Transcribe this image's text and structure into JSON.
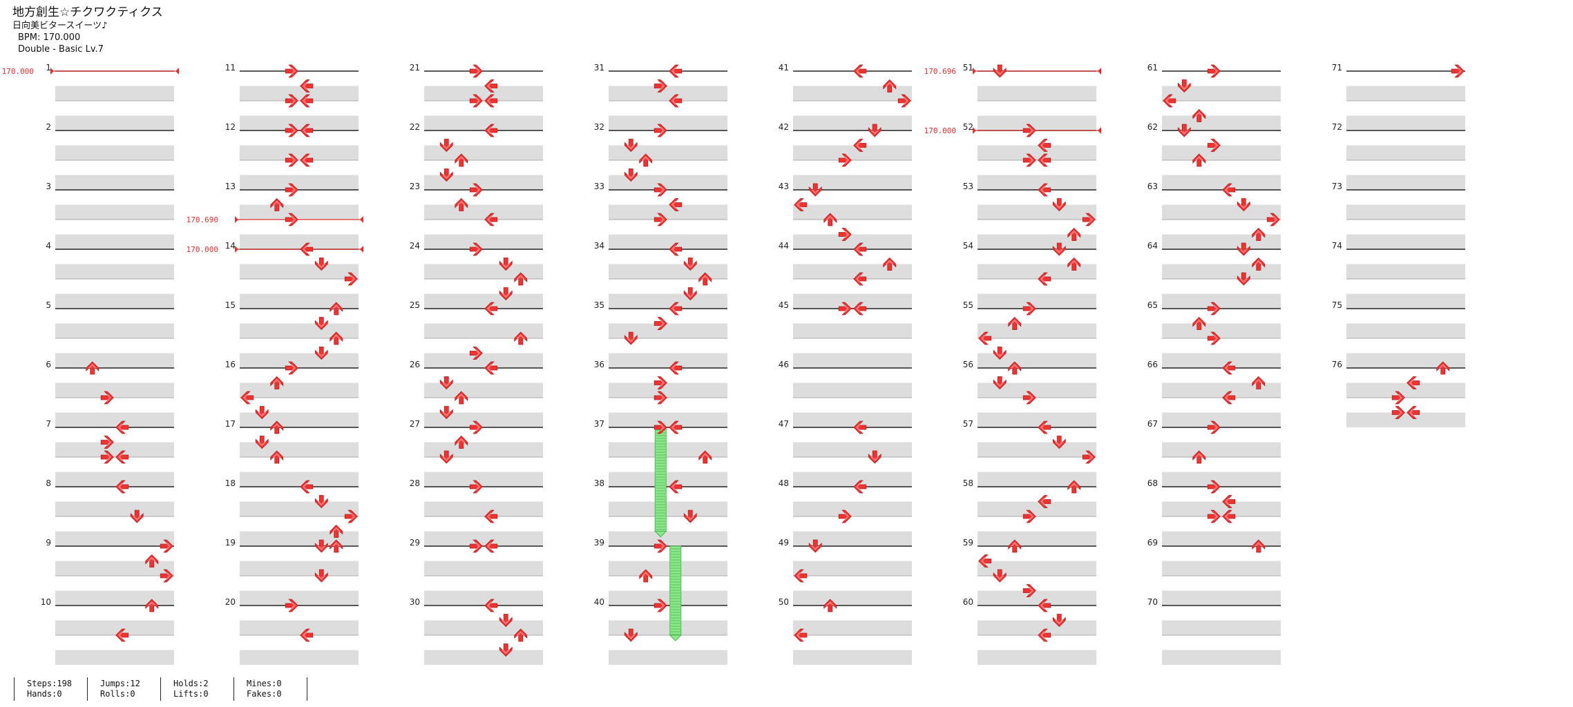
{
  "song": {
    "title": "地方創生☆チクワクティクス",
    "artist": "日向美ビタースイーツ♪",
    "bpm_text": "BPM: 170.000",
    "difficulty_text": "Double - Basic  Lv.7"
  },
  "stats": [
    [
      "Steps:198",
      "Hands:0"
    ],
    [
      "Jumps:12",
      "Rolls:0"
    ],
    [
      "Holds:2",
      "Lifts:0"
    ],
    [
      "Mines:0",
      "Fakes:0"
    ]
  ],
  "total_measures": 76,
  "bpm_changes": [
    {
      "measure": 1,
      "offset": 0,
      "label": "170.000"
    },
    {
      "measure": 13,
      "offset": 0.5,
      "label": "170.690"
    },
    {
      "measure": 14,
      "offset": 0,
      "label": "170.000"
    },
    {
      "measure": 51,
      "offset": 0,
      "label": "170.696"
    },
    {
      "measure": 52,
      "offset": 0,
      "label": "170.000"
    }
  ],
  "holds": [
    {
      "measure": 37,
      "start": 0,
      "lane": 3,
      "end_measure": 38,
      "end": 0.75
    },
    {
      "measure": 39,
      "start": 0,
      "lane": 4,
      "end_measure": 40,
      "end": 0.5
    }
  ],
  "colors": {
    "arrow": "#ee3333",
    "arrow_light": "#ff7a7a",
    "arrow_dark": "#b81a1a",
    "band": "#dddddd",
    "bpm": "#e23030",
    "hold": "#8de88d",
    "hold_line": "#4cb84c"
  },
  "notes": [
    [
      6,
      0,
      2
    ],
    [
      6,
      0.5,
      3
    ],
    [
      7,
      0,
      4
    ],
    [
      7,
      0.25,
      3
    ],
    [
      7,
      0.5,
      3
    ],
    [
      7,
      0.5,
      4
    ],
    [
      8,
      0,
      4
    ],
    [
      8,
      0.5,
      5
    ],
    [
      9,
      0,
      7
    ],
    [
      9,
      0.25,
      6
    ],
    [
      9,
      0.5,
      7
    ],
    [
      10,
      0,
      6
    ],
    [
      10,
      0.5,
      4
    ],
    [
      11,
      0,
      3
    ],
    [
      11,
      0.25,
      4
    ],
    [
      11,
      0.5,
      3
    ],
    [
      11,
      0.5,
      4
    ],
    [
      12,
      0,
      3
    ],
    [
      12,
      0,
      4
    ],
    [
      12,
      0.5,
      3
    ],
    [
      12,
      0.5,
      4
    ],
    [
      13,
      0,
      3
    ],
    [
      13,
      0.25,
      2
    ],
    [
      13,
      0.5,
      3
    ],
    [
      14,
      0,
      4
    ],
    [
      14,
      0.25,
      5
    ],
    [
      14,
      0.5,
      7
    ],
    [
      15,
      0,
      6
    ],
    [
      15,
      0.25,
      5
    ],
    [
      15,
      0.5,
      6
    ],
    [
      15,
      0.75,
      5
    ],
    [
      16,
      0,
      3
    ],
    [
      16,
      0.25,
      2
    ],
    [
      16,
      0.5,
      0
    ],
    [
      16,
      0.75,
      1
    ],
    [
      17,
      0,
      2
    ],
    [
      17,
      0.25,
      1
    ],
    [
      17,
      0.5,
      2
    ],
    [
      18,
      0,
      4
    ],
    [
      18,
      0.25,
      5
    ],
    [
      18,
      0.5,
      7
    ],
    [
      18,
      0.75,
      6
    ],
    [
      19,
      0,
      5
    ],
    [
      19,
      0,
      6
    ],
    [
      19,
      0.5,
      5
    ],
    [
      20,
      0,
      3
    ],
    [
      20,
      0.5,
      4
    ],
    [
      21,
      0,
      3
    ],
    [
      21,
      0.25,
      4
    ],
    [
      21,
      0.5,
      3
    ],
    [
      21,
      0.5,
      4
    ],
    [
      22,
      0,
      4
    ],
    [
      22,
      0.25,
      1
    ],
    [
      22,
      0.5,
      2
    ],
    [
      22,
      0.75,
      1
    ],
    [
      23,
      0,
      3
    ],
    [
      23,
      0.25,
      2
    ],
    [
      23,
      0.5,
      4
    ],
    [
      24,
      0,
      3
    ],
    [
      24,
      0.25,
      5
    ],
    [
      24,
      0.5,
      6
    ],
    [
      24,
      0.75,
      5
    ],
    [
      25,
      0,
      4
    ],
    [
      25,
      0.5,
      6
    ],
    [
      25,
      0.75,
      3
    ],
    [
      26,
      0,
      4
    ],
    [
      26,
      0.25,
      1
    ],
    [
      26,
      0.5,
      2
    ],
    [
      26,
      0.75,
      1
    ],
    [
      27,
      0,
      3
    ],
    [
      27,
      0.25,
      2
    ],
    [
      27,
      0.5,
      1
    ],
    [
      28,
      0,
      3
    ],
    [
      28,
      0.5,
      4
    ],
    [
      29,
      0,
      3
    ],
    [
      29,
      0,
      4
    ],
    [
      30,
      0,
      4
    ],
    [
      30,
      0.25,
      5
    ],
    [
      30,
      0.5,
      6
    ],
    [
      30,
      0.75,
      5
    ],
    [
      31,
      0,
      4
    ],
    [
      31,
      0.25,
      3
    ],
    [
      31,
      0.5,
      4
    ],
    [
      32,
      0,
      3
    ],
    [
      32,
      0.25,
      1
    ],
    [
      32,
      0.5,
      2
    ],
    [
      32,
      0.75,
      1
    ],
    [
      33,
      0,
      3
    ],
    [
      33,
      0.25,
      4
    ],
    [
      33,
      0.5,
      3
    ],
    [
      34,
      0,
      4
    ],
    [
      34,
      0.25,
      5
    ],
    [
      34,
      0.5,
      6
    ],
    [
      34,
      0.75,
      5
    ],
    [
      35,
      0,
      4
    ],
    [
      35,
      0.25,
      3
    ],
    [
      35,
      0.5,
      1
    ],
    [
      36,
      0,
      4
    ],
    [
      36,
      0.25,
      3
    ],
    [
      36,
      0.5,
      3
    ],
    [
      37,
      0,
      3
    ],
    [
      37,
      0,
      4
    ],
    [
      37,
      0.5,
      6
    ],
    [
      38,
      0,
      4
    ],
    [
      38,
      0.5,
      5
    ],
    [
      39,
      0,
      3
    ],
    [
      39,
      0.5,
      2
    ],
    [
      40,
      0,
      3
    ],
    [
      40,
      0.5,
      1
    ],
    [
      41,
      0,
      4
    ],
    [
      41,
      0.25,
      6
    ],
    [
      41,
      0.5,
      7
    ],
    [
      42,
      0,
      5
    ],
    [
      42,
      0.25,
      4
    ],
    [
      42,
      0.5,
      3
    ],
    [
      43,
      0,
      1
    ],
    [
      43,
      0.25,
      0
    ],
    [
      43,
      0.5,
      2
    ],
    [
      43,
      0.75,
      3
    ],
    [
      44,
      0,
      4
    ],
    [
      44,
      0.25,
      6
    ],
    [
      44,
      0.5,
      4
    ],
    [
      45,
      0,
      3
    ],
    [
      45,
      0,
      4
    ],
    [
      47,
      0,
      4
    ],
    [
      47,
      0.5,
      5
    ],
    [
      48,
      0,
      4
    ],
    [
      48,
      0.5,
      3
    ],
    [
      49,
      0,
      1
    ],
    [
      49,
      0.5,
      0
    ],
    [
      50,
      0,
      2
    ],
    [
      50,
      0.5,
      0
    ],
    [
      51,
      0,
      1
    ],
    [
      52,
      0,
      3
    ],
    [
      52,
      0.25,
      4
    ],
    [
      52,
      0.5,
      3
    ],
    [
      52,
      0.5,
      4
    ],
    [
      53,
      0,
      4
    ],
    [
      53,
      0.25,
      5
    ],
    [
      53,
      0.5,
      7
    ],
    [
      53,
      0.75,
      6
    ],
    [
      54,
      0,
      5
    ],
    [
      54,
      0.25,
      6
    ],
    [
      54,
      0.5,
      4
    ],
    [
      55,
      0,
      3
    ],
    [
      55,
      0.25,
      2
    ],
    [
      55,
      0.5,
      0
    ],
    [
      55,
      0.75,
      1
    ],
    [
      56,
      0,
      2
    ],
    [
      56,
      0.25,
      1
    ],
    [
      56,
      0.5,
      3
    ],
    [
      57,
      0,
      4
    ],
    [
      57,
      0.25,
      5
    ],
    [
      57,
      0.5,
      7
    ],
    [
      58,
      0,
      6
    ],
    [
      58,
      0.25,
      4
    ],
    [
      58,
      0.5,
      3
    ],
    [
      59,
      0,
      2
    ],
    [
      59,
      0.25,
      0
    ],
    [
      59,
      0.5,
      1
    ],
    [
      59,
      0.75,
      3
    ],
    [
      60,
      0,
      4
    ],
    [
      60,
      0.25,
      5
    ],
    [
      60,
      0.5,
      4
    ],
    [
      61,
      0,
      3
    ],
    [
      61,
      0.25,
      1
    ],
    [
      61,
      0.5,
      0
    ],
    [
      61,
      0.75,
      2
    ],
    [
      62,
      0,
      1
    ],
    [
      62,
      0.25,
      3
    ],
    [
      62,
      0.5,
      2
    ],
    [
      63,
      0,
      4
    ],
    [
      63,
      0.25,
      5
    ],
    [
      63,
      0.5,
      7
    ],
    [
      63,
      0.75,
      6
    ],
    [
      64,
      0,
      5
    ],
    [
      64,
      0.25,
      6
    ],
    [
      64,
      0.5,
      5
    ],
    [
      65,
      0,
      3
    ],
    [
      65,
      0.25,
      2
    ],
    [
      65,
      0.5,
      3
    ],
    [
      66,
      0,
      4
    ],
    [
      66,
      0.25,
      6
    ],
    [
      66,
      0.5,
      4
    ],
    [
      67,
      0,
      3
    ],
    [
      67,
      0.5,
      2
    ],
    [
      68,
      0,
      3
    ],
    [
      68,
      0.25,
      4
    ],
    [
      68,
      0.5,
      3
    ],
    [
      68,
      0.5,
      4
    ],
    [
      69,
      0,
      6
    ],
    [
      71,
      0,
      7
    ],
    [
      76,
      0,
      6
    ],
    [
      76,
      0.25,
      4
    ],
    [
      76,
      0.5,
      3
    ],
    [
      76,
      0.75,
      3
    ],
    [
      76,
      0.75,
      4
    ]
  ]
}
